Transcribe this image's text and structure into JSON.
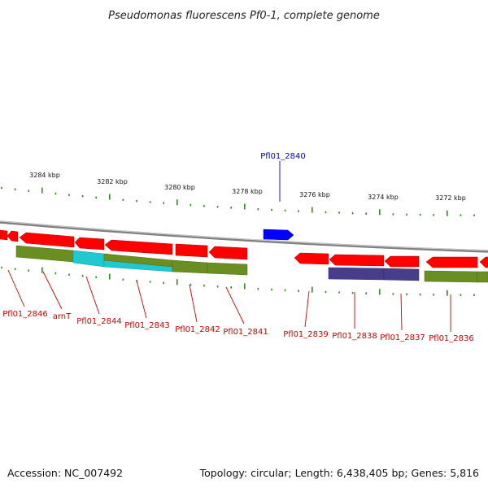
{
  "title": "Pseudomonas fluorescens Pf0-1, complete genome",
  "footer": {
    "accession": "Accession: NC_007492",
    "summary": "Topology: circular; Length: 6,438,405 bp; Genes: 5,816"
  },
  "scale_labels": [
    "3284 kbp",
    "3282 kbp",
    "3280 kbp",
    "3278 kbp",
    "3276 kbp",
    "3274 kbp",
    "3272 kbp"
  ],
  "gene_labels": [
    "Pfl01_2846",
    "arnT",
    "Pfl01_2844",
    "Pfl01_2843",
    "Pfl01_2842",
    "Pfl01_2841",
    "Pfl01_2840",
    "Pfl01_2839",
    "Pfl01_2838",
    "Pfl01_2837",
    "Pfl01_2836"
  ],
  "colors": {
    "cds": "#ff0000",
    "cds_highlight": "#0000ff",
    "feature_green": "#6b8e23",
    "feature_cyan": "#20c8d0",
    "feature_purple": "#483d8b",
    "tick": "#2e8b22",
    "backbone": "#808080",
    "label_red": "#cc0000",
    "label_blue": "#0000cc"
  }
}
